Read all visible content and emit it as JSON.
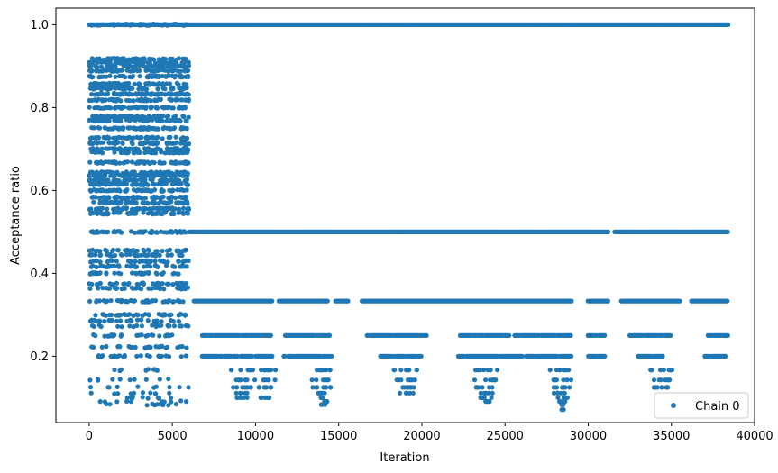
{
  "chart_data": {
    "type": "scatter",
    "title": "",
    "xlabel": "Iteration",
    "ylabel": "Acceptance ratio",
    "xlim": [
      -2000,
      40000
    ],
    "ylim": [
      0.04,
      1.04
    ],
    "x_ticks": [
      0,
      5000,
      10000,
      15000,
      20000,
      25000,
      30000,
      35000,
      40000
    ],
    "y_ticks": [
      0.2,
      0.4,
      0.6,
      0.8,
      1.0
    ],
    "x_tick_labels": [
      "0",
      "5000",
      "10000",
      "15000",
      "20000",
      "25000",
      "30000",
      "35000",
      "40000"
    ],
    "y_tick_labels": [
      "0.2",
      "0.4",
      "0.6",
      "0.8",
      "1.0"
    ],
    "grid": false,
    "legend_position": "bottom-right",
    "series": [
      {
        "name": "Chain 0",
        "color": "#1f77b4",
        "marker": "circle",
        "x_range": [
          0,
          38400
        ],
        "burn_in_end": 6000,
        "burn_in_levels": [
          0.083,
          0.091,
          0.1,
          0.111,
          0.125,
          0.143,
          0.167,
          0.2,
          0.222,
          0.25,
          0.273,
          0.286,
          0.3,
          0.333,
          0.364,
          0.375,
          0.4,
          0.417,
          0.429,
          0.444,
          0.455,
          0.5,
          0.545,
          0.556,
          0.571,
          0.583,
          0.6,
          0.615,
          0.625,
          0.636,
          0.643,
          0.667,
          0.692,
          0.7,
          0.714,
          0.727,
          0.75,
          0.769,
          0.778,
          0.8,
          0.818,
          0.833,
          0.846,
          0.857,
          0.875,
          0.889,
          0.9,
          0.909,
          0.917,
          1.0
        ],
        "main_levels": [
          {
            "y": 1.0,
            "segments": [
              [
                0,
                38400
              ]
            ]
          },
          {
            "y": 0.5,
            "segments": [
              [
                6000,
                31200
              ],
              [
                31600,
                38400
              ]
            ]
          },
          {
            "y": 0.3333,
            "segments": [
              [
                6300,
                11000
              ],
              [
                11400,
                14400
              ],
              [
                14800,
                15600
              ],
              [
                16400,
                29000
              ],
              [
                30000,
                31200
              ],
              [
                32000,
                35500
              ],
              [
                36200,
                38400
              ]
            ]
          },
          {
            "y": 0.25,
            "segments": [
              [
                6800,
                11000
              ],
              [
                11800,
                14500
              ],
              [
                16700,
                20300
              ],
              [
                22300,
                29000
              ],
              [
                30000,
                31000
              ],
              [
                32500,
                35000
              ],
              [
                37200,
                38400
              ]
            ]
          },
          {
            "y": 0.2,
            "segments": [
              [
                6800,
                11000
              ],
              [
                11700,
                14600
              ],
              [
                17500,
                20000
              ],
              [
                22200,
                29000
              ],
              [
                30000,
                31000
              ],
              [
                33000,
                34500
              ],
              [
                37000,
                38300
              ]
            ]
          }
        ],
        "low_clusters": [
          {
            "center": 9200,
            "levels": [
              0.1667,
              0.1429,
              0.125,
              0.1111,
              0.1
            ]
          },
          {
            "center": 10600,
            "levels": [
              0.1667,
              0.1429,
              0.125,
              0.1
            ]
          },
          {
            "center": 14000,
            "levels": [
              0.1667,
              0.1429,
              0.125,
              0.1111,
              0.1,
              0.0909,
              0.0833
            ]
          },
          {
            "center": 19000,
            "levels": [
              0.1667,
              0.1429,
              0.125,
              0.1111
            ]
          },
          {
            "center": 23800,
            "levels": [
              0.1667,
              0.1429,
              0.125,
              0.1111,
              0.1,
              0.0909
            ]
          },
          {
            "center": 28400,
            "levels": [
              0.1667,
              0.1429,
              0.125,
              0.1111,
              0.1,
              0.0909,
              0.0833,
              0.0714
            ]
          },
          {
            "center": 34500,
            "levels": [
              0.1667,
              0.1429,
              0.125
            ]
          }
        ]
      }
    ]
  }
}
